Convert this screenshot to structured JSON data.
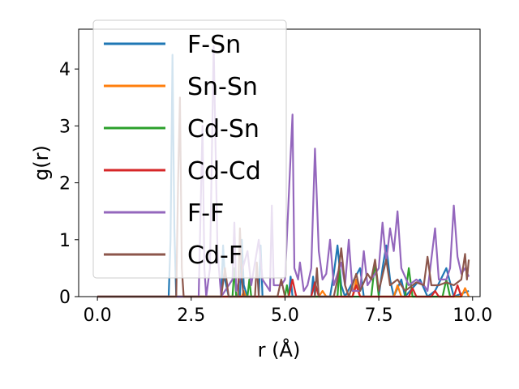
{
  "chart_data": {
    "type": "line",
    "xlabel": "r (Å)",
    "ylabel": "g(r)",
    "xlim": [
      -0.5,
      10.2
    ],
    "ylim": [
      0,
      4.7
    ],
    "xticks": [
      0.0,
      2.5,
      5.0,
      7.5,
      10.0
    ],
    "xtick_labels": [
      "0.0",
      "2.5",
      "5.0",
      "7.5",
      "10.0"
    ],
    "yticks": [
      0,
      1,
      2,
      3,
      4
    ],
    "ytick_labels": [
      "0",
      "1",
      "2",
      "3",
      "4"
    ],
    "grid": false,
    "legend_position": "upper-left",
    "series": [
      {
        "name": "F-Sn",
        "color": "#1f77b4",
        "points": [
          [
            0,
            0
          ],
          [
            1.9,
            0
          ],
          [
            1.95,
            1.0
          ],
          [
            2.0,
            4.25
          ],
          [
            2.05,
            1.2
          ],
          [
            2.1,
            0
          ],
          [
            3.3,
            0
          ],
          [
            3.35,
            0.9
          ],
          [
            3.4,
            0.3
          ],
          [
            3.5,
            0
          ],
          [
            3.8,
            0
          ],
          [
            3.85,
            1.0
          ],
          [
            3.9,
            0.2
          ],
          [
            4.0,
            0
          ],
          [
            4.3,
            0
          ],
          [
            4.35,
            0.9
          ],
          [
            4.4,
            0
          ],
          [
            5.1,
            0
          ],
          [
            5.15,
            0.35
          ],
          [
            5.2,
            0
          ],
          [
            5.7,
            0
          ],
          [
            5.75,
            0.35
          ],
          [
            5.8,
            0
          ],
          [
            6.2,
            0
          ],
          [
            6.3,
            0.4
          ],
          [
            6.4,
            0.9
          ],
          [
            6.5,
            0.2
          ],
          [
            6.6,
            0
          ],
          [
            7.0,
            0.5
          ],
          [
            7.1,
            0
          ],
          [
            7.5,
            0
          ],
          [
            7.6,
            0.5
          ],
          [
            7.7,
            0.9
          ],
          [
            7.8,
            0.3
          ],
          [
            7.9,
            0
          ],
          [
            8.1,
            0.3
          ],
          [
            8.2,
            0
          ],
          [
            8.6,
            0.3
          ],
          [
            8.8,
            0
          ],
          [
            9.0,
            0.1
          ],
          [
            9.3,
            0.5
          ],
          [
            9.5,
            0
          ],
          [
            9.9,
            0.1
          ]
        ]
      },
      {
        "name": "Sn-Sn",
        "color": "#ff7f0e",
        "points": [
          [
            0,
            0
          ],
          [
            3.85,
            0
          ],
          [
            3.9,
            0.1
          ],
          [
            3.95,
            0
          ],
          [
            5.9,
            0
          ],
          [
            6.0,
            0.1
          ],
          [
            6.1,
            0
          ],
          [
            6.8,
            0
          ],
          [
            6.9,
            0.3
          ],
          [
            7.0,
            0
          ],
          [
            7.9,
            0
          ],
          [
            8.0,
            0.2
          ],
          [
            8.1,
            0
          ],
          [
            9.7,
            0
          ],
          [
            9.8,
            0.15
          ],
          [
            9.9,
            0
          ]
        ]
      },
      {
        "name": "Cd-Sn",
        "color": "#2ca02c",
        "points": [
          [
            0,
            0
          ],
          [
            3.6,
            0
          ],
          [
            3.65,
            0.5
          ],
          [
            3.7,
            0
          ],
          [
            4.0,
            0
          ],
          [
            4.05,
            0.3
          ],
          [
            4.1,
            0
          ],
          [
            5.0,
            0
          ],
          [
            5.05,
            0.2
          ],
          [
            5.1,
            0
          ],
          [
            6.4,
            0
          ],
          [
            6.45,
            0.5
          ],
          [
            6.5,
            0
          ],
          [
            7.3,
            0
          ],
          [
            7.4,
            0.6
          ],
          [
            7.5,
            0
          ],
          [
            8.2,
            0
          ],
          [
            8.3,
            0.5
          ],
          [
            8.4,
            0
          ],
          [
            9.2,
            0
          ],
          [
            9.3,
            0.3
          ],
          [
            9.4,
            0
          ]
        ]
      },
      {
        "name": "Cd-Cd",
        "color": "#d62728",
        "points": [
          [
            0,
            0
          ],
          [
            5.1,
            0
          ],
          [
            5.2,
            0.3
          ],
          [
            5.3,
            0
          ],
          [
            5.7,
            0
          ],
          [
            5.8,
            0.25
          ],
          [
            5.9,
            0
          ],
          [
            6.8,
            0
          ],
          [
            6.9,
            0.2
          ],
          [
            7.0,
            0
          ],
          [
            8.3,
            0
          ],
          [
            8.4,
            0.15
          ],
          [
            8.5,
            0
          ],
          [
            8.9,
            0
          ],
          [
            9.0,
            0.1
          ],
          [
            9.1,
            0
          ],
          [
            9.5,
            0
          ],
          [
            9.6,
            0.2
          ],
          [
            9.7,
            0
          ]
        ]
      },
      {
        "name": "F-F",
        "color": "#9467bd",
        "points": [
          [
            0,
            0
          ],
          [
            2.7,
            0
          ],
          [
            2.8,
            3.0
          ],
          [
            2.85,
            0.5
          ],
          [
            2.9,
            0
          ],
          [
            3.0,
            0.5
          ],
          [
            3.1,
            4.4
          ],
          [
            3.2,
            0.8
          ],
          [
            3.3,
            0
          ],
          [
            3.6,
            0.3
          ],
          [
            3.65,
            1.3
          ],
          [
            3.7,
            0.1
          ],
          [
            4.0,
            0.8
          ],
          [
            4.1,
            0.2
          ],
          [
            4.3,
            1.0
          ],
          [
            4.4,
            0.3
          ],
          [
            4.6,
            0.1
          ],
          [
            4.65,
            1.6
          ],
          [
            4.7,
            0.2
          ],
          [
            4.9,
            0.2
          ],
          [
            5.0,
            0.3
          ],
          [
            5.2,
            3.2
          ],
          [
            5.25,
            0.5
          ],
          [
            5.35,
            0.3
          ],
          [
            5.4,
            0.6
          ],
          [
            5.5,
            0.1
          ],
          [
            5.6,
            0.2
          ],
          [
            5.7,
            0.5
          ],
          [
            5.8,
            2.6
          ],
          [
            5.9,
            0.8
          ],
          [
            6.0,
            0.3
          ],
          [
            6.1,
            0.4
          ],
          [
            6.2,
            1.0
          ],
          [
            6.3,
            0.2
          ],
          [
            6.5,
            0.6
          ],
          [
            6.6,
            0.2
          ],
          [
            6.7,
            1.0
          ],
          [
            6.8,
            0.1
          ],
          [
            7.0,
            0.1
          ],
          [
            7.1,
            0.8
          ],
          [
            7.2,
            0.2
          ],
          [
            7.3,
            0.3
          ],
          [
            7.5,
            0.5
          ],
          [
            7.6,
            1.3
          ],
          [
            7.7,
            0.6
          ],
          [
            7.8,
            1.2
          ],
          [
            7.9,
            0.8
          ],
          [
            8.0,
            1.5
          ],
          [
            8.1,
            0.5
          ],
          [
            8.3,
            0.2
          ],
          [
            8.5,
            0.3
          ],
          [
            8.7,
            0.2
          ],
          [
            8.8,
            0.1
          ],
          [
            9.0,
            1.2
          ],
          [
            9.1,
            0.3
          ],
          [
            9.3,
            0.3
          ],
          [
            9.4,
            0.5
          ],
          [
            9.5,
            1.6
          ],
          [
            9.6,
            0.7
          ],
          [
            9.7,
            0.4
          ],
          [
            9.8,
            0.5
          ],
          [
            9.9,
            0.35
          ]
        ]
      },
      {
        "name": "Cd-F",
        "color": "#8c564b",
        "points": [
          [
            0,
            0
          ],
          [
            2.1,
            0
          ],
          [
            2.15,
            2.0
          ],
          [
            2.2,
            3.5
          ],
          [
            2.25,
            0.5
          ],
          [
            2.3,
            0
          ],
          [
            3.3,
            0
          ],
          [
            3.4,
            0.5
          ],
          [
            3.5,
            0
          ],
          [
            3.75,
            0
          ],
          [
            3.8,
            1.2
          ],
          [
            3.85,
            0.3
          ],
          [
            3.9,
            0
          ],
          [
            4.2,
            0
          ],
          [
            4.25,
            0.6
          ],
          [
            4.3,
            0
          ],
          [
            4.8,
            0
          ],
          [
            4.9,
            0.3
          ],
          [
            5.0,
            0
          ],
          [
            5.8,
            0
          ],
          [
            5.85,
            0.5
          ],
          [
            5.9,
            0
          ],
          [
            6.3,
            0
          ],
          [
            6.4,
            0.3
          ],
          [
            6.5,
            0.85
          ],
          [
            6.6,
            0.2
          ],
          [
            6.7,
            0
          ],
          [
            6.9,
            0.4
          ],
          [
            7.0,
            0.1
          ],
          [
            7.2,
            0.4
          ],
          [
            7.3,
            0.3
          ],
          [
            7.4,
            0.65
          ],
          [
            7.5,
            0.1
          ],
          [
            7.7,
            0.65
          ],
          [
            7.8,
            0.2
          ],
          [
            8.0,
            0.3
          ],
          [
            8.2,
            0.1
          ],
          [
            8.5,
            0.25
          ],
          [
            8.7,
            0.2
          ],
          [
            8.8,
            0.7
          ],
          [
            8.9,
            0.2
          ],
          [
            9.1,
            0.2
          ],
          [
            9.3,
            0.25
          ],
          [
            9.5,
            0.2
          ],
          [
            9.7,
            0.3
          ],
          [
            9.8,
            0.75
          ],
          [
            9.85,
            0.3
          ],
          [
            9.9,
            0.65
          ]
        ]
      }
    ]
  }
}
